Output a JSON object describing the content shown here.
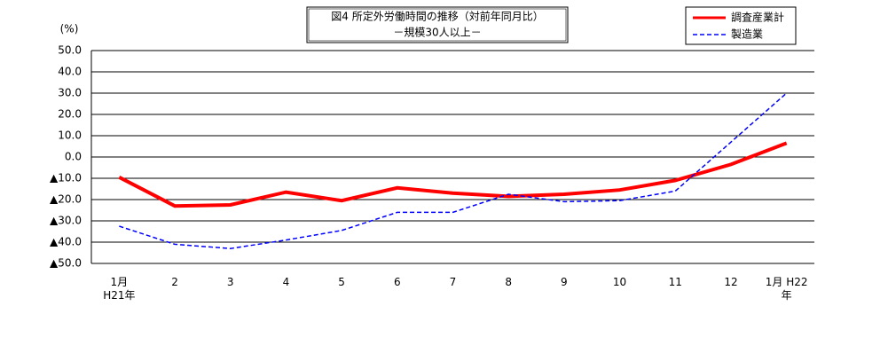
{
  "chart_data": {
    "type": "line",
    "title": "図4  所定外労働時間の推移（対前年同月比）",
    "subtitle": "－規模30人以上－",
    "y_label": "(%)",
    "categories": [
      "1月\nH21年",
      "2",
      "3",
      "4",
      "5",
      "6",
      "7",
      "8",
      "9",
      "10",
      "11",
      "12",
      "1月  H22\n年"
    ],
    "series": [
      {
        "name": "調査産業計",
        "color": "#ff0000",
        "values": [
          -9.5,
          -23,
          -22.5,
          -16.5,
          -20.5,
          -14.5,
          -17,
          -18.5,
          -17.5,
          -15.5,
          -11,
          -3.5,
          6.5
        ]
      },
      {
        "name": "製造業",
        "color": "#0000ff",
        "values": [
          -32.5,
          -41,
          -43,
          -39,
          -34.5,
          -26,
          -26,
          -17.5,
          -21,
          -20.5,
          -16,
          7,
          30
        ]
      }
    ],
    "ylim": [
      -50,
      50
    ],
    "yticks": [
      {
        "value": -50,
        "label": "▲50.0"
      },
      {
        "value": -40,
        "label": "▲40.0"
      },
      {
        "value": -30,
        "label": "▲30.0"
      },
      {
        "value": -20,
        "label": "▲20.0"
      },
      {
        "value": -10,
        "label": "▲10.0"
      },
      {
        "value": 0,
        "label": "0.0"
      },
      {
        "value": 10,
        "label": "10.0"
      },
      {
        "value": 20,
        "label": "20.0"
      },
      {
        "value": 30,
        "label": "30.0"
      },
      {
        "value": 40,
        "label": "40.0"
      },
      {
        "value": 50,
        "label": "50.0"
      }
    ],
    "grid": true,
    "legend": "top-right"
  }
}
